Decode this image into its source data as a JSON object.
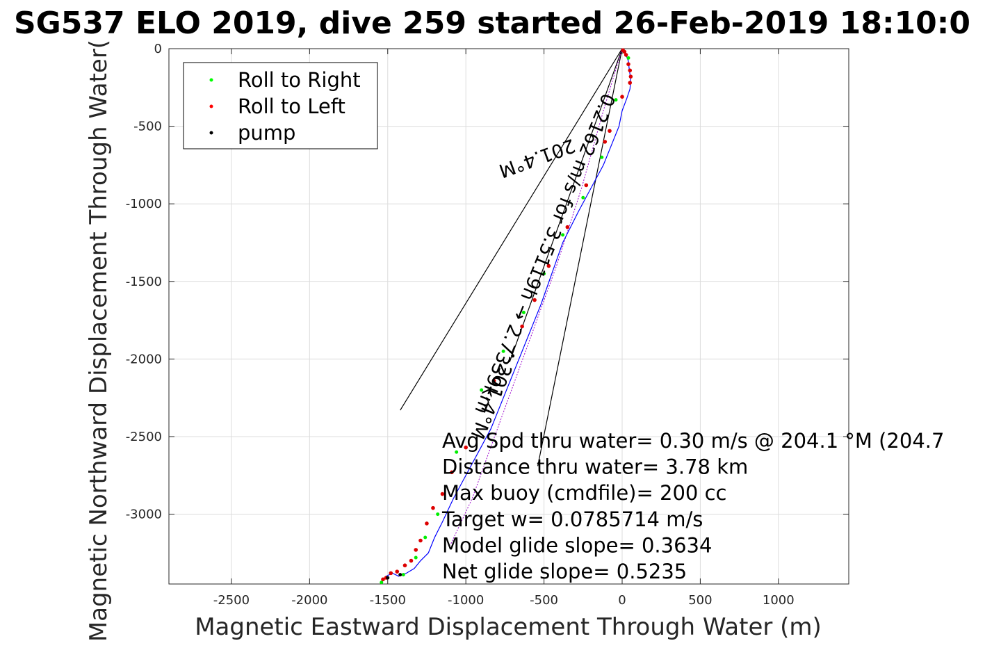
{
  "chart_data": {
    "type": "scatter",
    "title": "SG537 ELO 2019, dive 259 started 26-Feb-2019 18:10:0",
    "xlabel": "Magnetic Eastward Displacement Through Water (m)",
    "ylabel": "Magnetic Northward Displacement Through Water(",
    "xlim": [
      -2900,
      1450
    ],
    "ylim": [
      -3450,
      0
    ],
    "xticks": [
      -2500,
      -2000,
      -1500,
      -1000,
      -500,
      0,
      500,
      1000
    ],
    "yticks": [
      0,
      -500,
      -1000,
      -1500,
      -2000,
      -2500,
      -3000
    ],
    "xtick_labels": [
      "-2500",
      "-2000",
      "-1500",
      "-1000",
      "-500",
      "0",
      "500",
      "1000"
    ],
    "ytick_labels": [
      "0",
      "-500",
      "-1000",
      "-1500",
      "-2000",
      "-2500",
      "-3000"
    ],
    "grid": true,
    "legend": {
      "placement": "top-left",
      "entries": [
        {
          "label": "Roll to Right",
          "color": "#00ff00"
        },
        {
          "label": "Roll to Left",
          "color": "#ff0000"
        },
        {
          "label": "pump",
          "color": "#000000"
        }
      ]
    },
    "track": {
      "color": "#0000ff",
      "x": [
        0,
        20,
        40,
        45,
        55,
        50,
        30,
        0,
        -20,
        -60,
        -120,
        -200,
        -280,
        -380,
        -450,
        -520,
        -600,
        -680,
        -760,
        -840,
        -920,
        -1000,
        -1080,
        -1150,
        -1200,
        -1240,
        -1290,
        -1330,
        -1380,
        -1430,
        -1470,
        -1510,
        -1540
      ],
      "y": [
        0,
        -30,
        -80,
        -130,
        -200,
        -260,
        -320,
        -400,
        -500,
        -600,
        -750,
        -900,
        -1050,
        -1250,
        -1450,
        -1650,
        -1850,
        -2050,
        -2250,
        -2450,
        -2600,
        -2750,
        -2900,
        -3050,
        -3150,
        -3250,
        -3300,
        -3350,
        -3380,
        -3400,
        -3380,
        -3400,
        -3440
      ]
    },
    "model_track": {
      "color": "#9900cc",
      "x": [
        0,
        -120,
        -260,
        -420,
        -600,
        -780,
        -960,
        -1100
      ],
      "y": [
        0,
        -400,
        -900,
        -1400,
        -1900,
        -2400,
        -2900,
        -3200
      ]
    },
    "roll_right": {
      "x": [
        40,
        -40,
        -130,
        -250,
        -380,
        -500,
        -630,
        -760,
        -900,
        -1060,
        -1180,
        -1260,
        -1320,
        -1400,
        -1540
      ],
      "y": [
        -60,
        -330,
        -700,
        -960,
        -1200,
        -1450,
        -1700,
        -1950,
        -2200,
        -2600,
        -3000,
        -3150,
        -3280,
        -3390,
        -3440
      ]
    },
    "roll_left": {
      "x": [
        5,
        15,
        25,
        40,
        50,
        55,
        50,
        0,
        -80,
        -110,
        -230,
        -350,
        -470,
        -560,
        -640,
        -820,
        -1000,
        -1090,
        -1150,
        -1210,
        -1250,
        -1290,
        -1320,
        -1350,
        -1390,
        -1440,
        -1480,
        -1510,
        -1530
      ],
      "y": [
        -10,
        -20,
        -40,
        -100,
        -140,
        -180,
        -220,
        -310,
        -530,
        -600,
        -880,
        -1150,
        -1400,
        -1620,
        -1790,
        -2140,
        -2570,
        -2730,
        -2870,
        -2960,
        -3060,
        -3170,
        -3230,
        -3300,
        -3330,
        -3370,
        -3380,
        -3410,
        -3420
      ]
    },
    "pump": {
      "x": [
        -700,
        -1420,
        -1500
      ],
      "y": [
        -1980,
        -3390,
        -3410
      ]
    },
    "vectors": {
      "color": "#000000",
      "segments": [
        {
          "x": [
            0,
            -1420
          ],
          "y": [
            0,
            -2330
          ]
        },
        {
          "x": [
            0,
            -540
          ],
          "y": [
            0,
            -2690
          ]
        },
        {
          "x": [
            0,
            -720
          ],
          "y": [
            0,
            -2020
          ]
        }
      ]
    },
    "annotations": [
      {
        "text": "201.4°M",
        "x": -320,
        "y": -580,
        "angle": 160
      },
      {
        "text": "0.2162 m/s for 3.5119h → 2.7339km",
        "x": -120,
        "y": -280,
        "angle": 112
      },
      {
        "text": "201.4°M",
        "x": -780,
        "y": -2020,
        "angle": 112
      }
    ],
    "notes": [
      "Avg Spd thru water=  0.30 m/s @ 204.1 °M (204.7",
      "Distance thru water=  3.78 km",
      "Max buoy (cmdfile)= 200 cc",
      "Target w= 0.0785714 m/s",
      "Model glide slope= 0.3634",
      "Net glide slope= 0.5235"
    ]
  }
}
